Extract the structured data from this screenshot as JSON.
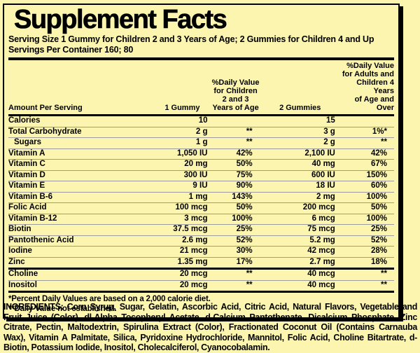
{
  "colors": {
    "background": "#FBF5B0",
    "text": "#000000",
    "row_divider": "#9B9B9B"
  },
  "label": {
    "title": "Supplement Facts",
    "serving_size": "Serving Size 1 Gummy for Children 2 and 3 Years of Age; 2 Gummies for Children 4 and Up",
    "servings_per_container": "Servings Per Container 160; 80"
  },
  "table": {
    "headers": {
      "amount_per_serving": "Amount Per Serving",
      "col_1_gummy": "1 Gummy",
      "col_dv_children": "%Daily Value\nfor Children\n2 and 3\nYears of Age",
      "col_2_gummies": "2 Gummies",
      "col_dv_adults": "%Daily Value\nfor Adults and\nChildren 4 Years\nof Age and Over"
    },
    "rows": [
      {
        "name": "Calories",
        "v1": "10",
        "dv1": "",
        "v2": "15",
        "dv2": ""
      },
      {
        "name": "Total Carbohydrate",
        "v1": "2 g",
        "dv1": "**",
        "v2": "3 g",
        "dv2": "1%*"
      },
      {
        "name": "Sugars",
        "v1": "1 g",
        "dv1": "**",
        "v2": "2 g",
        "dv2": "**"
      },
      {
        "name": "Vitamin A",
        "v1": "1,050 IU",
        "dv1": "42%",
        "v2": "2,100 IU",
        "dv2": "42%"
      },
      {
        "name": "Vitamin C",
        "v1": "20 mg",
        "dv1": "50%",
        "v2": "40 mg",
        "dv2": "67%"
      },
      {
        "name": "Vitamin D",
        "v1": "300 IU",
        "dv1": "75%",
        "v2": "600 IU",
        "dv2": "150%"
      },
      {
        "name": "Vitamin E",
        "v1": "9 IU",
        "dv1": "90%",
        "v2": "18 IU",
        "dv2": "60%"
      },
      {
        "name": "Vitamin B-6",
        "v1": "1 mg",
        "dv1": "143%",
        "v2": "2 mg",
        "dv2": "100%"
      },
      {
        "name": "Folic Acid",
        "v1": "100 mcg",
        "dv1": "50%",
        "v2": "200 mcg",
        "dv2": "50%"
      },
      {
        "name": "Vitamin B-12",
        "v1": "3 mcg",
        "dv1": "100%",
        "v2": "6 mcg",
        "dv2": "100%"
      },
      {
        "name": "Biotin",
        "v1": "37.5 mcg",
        "dv1": "25%",
        "v2": "75 mcg",
        "dv2": "25%"
      },
      {
        "name": "Pantothenic Acid",
        "v1": "2.6 mg",
        "dv1": "52%",
        "v2": "5.2 mg",
        "dv2": "52%"
      },
      {
        "name": "Iodine",
        "v1": "21 mcg",
        "dv1": "30%",
        "v2": "42 mcg",
        "dv2": "28%"
      },
      {
        "name": "Zinc",
        "v1": "1.35 mg",
        "dv1": "17%",
        "v2": "2.7 mg",
        "dv2": "18%"
      },
      {
        "name": "Choline",
        "v1": "20 mcg",
        "dv1": "**",
        "v2": "40 mcg",
        "dv2": "**"
      },
      {
        "name": "Inositol",
        "v1": "20 mcg",
        "dv1": "**",
        "v2": "40 mcg",
        "dv2": "**"
      }
    ]
  },
  "footnotes": {
    "line1": "*Percent Daily Values are based on a 2,000 calorie diet.",
    "line2": "**Daily Value not established."
  },
  "ingredients": {
    "label": "INGREDIENTS:",
    "text": " Corn Syrup, Sugar, Gelatin, Ascorbic Acid, Citric Acid, Natural Flavors, Vegetable and Fruit Juice (Color), dl-Alpha Tocopheryl Acetate, d-Calcium Pantothenate, Dicalcium Phosphate, Zinc Citrate, Pectin, Maltodextrin, Spirulina Extract (Color), Fractionated Coconut Oil (Contains Carnauba Wax), Vitamin A Palmitate, Silica, Pyridoxine Hydrochloride, Mannitol, Folic Acid, Choline Bitartrate, d-Biotin, Potassium Iodide, Inositol, Cholecalciferol, Cyanocobalamin."
  }
}
